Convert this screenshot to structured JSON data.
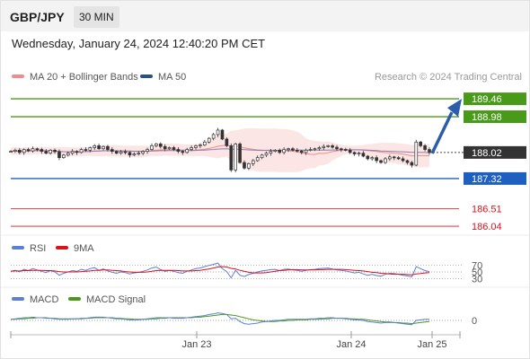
{
  "header": {
    "symbol": "GBP/JPY",
    "interval": "30 MIN"
  },
  "datetime": "Wednesday, January 24, 2024 12:40:20 PM CET",
  "legend": {
    "ma20_label": "MA 20 + Bollinger Bands",
    "ma20_color": "#f28b8b",
    "ma50_label": "MA 50",
    "ma50_color": "#2a4f8f",
    "copyright": "Research © 2024 Trading Central"
  },
  "rsi_legend": {
    "rsi_label": "RSI",
    "rsi_color": "#5b7fd6",
    "ma9_label": "9MA",
    "ma9_color": "#e0101a"
  },
  "macd_legend": {
    "macd_label": "MACD",
    "macd_color": "#5b7fd6",
    "signal_label": "MACD Signal",
    "signal_color": "#4a9a1a"
  },
  "chart_data": [
    {
      "type": "candlestick",
      "title": "GBP/JPY",
      "interval": "30 MIN",
      "x_labels": [
        "Jan 23",
        "Jan 24",
        "Jan 25"
      ],
      "last_price": 188.02,
      "ylim": [
        185.8,
        189.8
      ],
      "levels": [
        {
          "value": 189.46,
          "label": "189.46",
          "kind": "resistance",
          "color": "#4a9a1a"
        },
        {
          "value": 188.98,
          "label": "188.98",
          "kind": "resistance",
          "color": "#4a9a1a"
        },
        {
          "value": 187.32,
          "label": "187.32",
          "kind": "pivot",
          "color": "#1f5fbf"
        },
        {
          "value": 186.51,
          "label": "186.51",
          "kind": "support",
          "color": "#e0101a"
        },
        {
          "value": 186.04,
          "label": "186.04",
          "kind": "support",
          "color": "#e0101a"
        }
      ],
      "forecast_arrow": {
        "from": 188.02,
        "to": 189.46,
        "color": "#2a5daa"
      },
      "series": [
        {
          "name": "MA 20 + Bollinger Bands"
        },
        {
          "name": "MA 50"
        }
      ],
      "closes": [
        188.05,
        188.08,
        188.02,
        188.1,
        188.06,
        188.12,
        188.1,
        188.05,
        188.0,
        188.08,
        188.04,
        187.88,
        187.95,
        188.0,
        188.05,
        188.02,
        188.1,
        188.08,
        188.15,
        188.2,
        188.12,
        188.18,
        188.1,
        188.05,
        188.0,
        188.04,
        188.02,
        187.95,
        187.98,
        188.0,
        188.05,
        188.1,
        188.2,
        188.25,
        188.18,
        188.12,
        188.15,
        188.1,
        188.05,
        188.02,
        188.1,
        188.15,
        188.2,
        188.22,
        188.3,
        188.4,
        188.5,
        188.62,
        188.38,
        188.2,
        187.55,
        188.25,
        187.75,
        187.6,
        187.72,
        187.8,
        187.88,
        187.95,
        188.0,
        188.05,
        188.08,
        188.02,
        188.1,
        188.12,
        188.08,
        188.06,
        188.02,
        188.08,
        188.1,
        188.12,
        188.15,
        188.18,
        188.2,
        188.16,
        188.12,
        188.1,
        188.08,
        188.02,
        187.98,
        188.0,
        187.92,
        187.85,
        187.88,
        187.8,
        187.75,
        187.85,
        187.9,
        187.88,
        187.85,
        187.8,
        187.75,
        187.68,
        188.3,
        188.2,
        188.1,
        188.02
      ]
    },
    {
      "type": "line",
      "title": "RSI",
      "y_ticks": [
        70,
        50,
        30
      ],
      "ylim": [
        0,
        100
      ],
      "series": [
        {
          "name": "RSI",
          "values": [
            52,
            55,
            50,
            58,
            54,
            60,
            56,
            52,
            48,
            54,
            50,
            40,
            46,
            50,
            54,
            52,
            58,
            55,
            60,
            63,
            55,
            59,
            53,
            49,
            46,
            50,
            48,
            44,
            47,
            49,
            52,
            56,
            62,
            65,
            57,
            52,
            55,
            52,
            48,
            46,
            52,
            56,
            60,
            62,
            66,
            70,
            73,
            77,
            60,
            51,
            32,
            55,
            40,
            36,
            42,
            46,
            50,
            53,
            55,
            57,
            58,
            54,
            58,
            59,
            56,
            55,
            52,
            55,
            57,
            58,
            60,
            61,
            62,
            59,
            56,
            55,
            53,
            50,
            47,
            49,
            44,
            40,
            43,
            39,
            37,
            43,
            46,
            45,
            43,
            40,
            38,
            35,
            66,
            60,
            54,
            51
          ]
        },
        {
          "name": "9MA",
          "values": [
            52,
            53,
            53,
            54,
            54,
            55,
            55,
            55,
            54,
            54,
            53,
            51,
            50,
            50,
            50,
            50,
            51,
            52,
            53,
            55,
            55,
            56,
            56,
            55,
            54,
            53,
            51,
            50,
            49,
            49,
            49,
            50,
            52,
            54,
            55,
            55,
            55,
            55,
            54,
            53,
            53,
            53,
            54,
            55,
            57,
            59,
            62,
            65,
            66,
            65,
            61,
            59,
            55,
            52,
            49,
            47,
            47,
            47,
            48,
            50,
            52,
            54,
            55,
            56,
            57,
            57,
            56,
            56,
            56,
            56,
            57,
            57,
            58,
            58,
            58,
            58,
            57,
            56,
            55,
            54,
            53,
            51,
            49,
            48,
            46,
            45,
            44,
            43,
            43,
            43,
            42,
            41,
            44,
            45,
            47,
            48
          ]
        }
      ]
    },
    {
      "type": "line",
      "title": "MACD",
      "y_ticks": [
        0
      ],
      "series": [
        {
          "name": "MACD",
          "values": [
            0.02,
            0.03,
            0.04,
            0.05,
            0.05,
            0.06,
            0.05,
            0.05,
            0.04,
            0.04,
            0.03,
            0.02,
            0.02,
            0.02,
            0.03,
            0.03,
            0.04,
            0.04,
            0.05,
            0.06,
            0.06,
            0.06,
            0.05,
            0.04,
            0.03,
            0.03,
            0.02,
            0.01,
            0.01,
            0.01,
            0.02,
            0.03,
            0.04,
            0.05,
            0.05,
            0.05,
            0.05,
            0.04,
            0.04,
            0.04,
            0.05,
            0.06,
            0.07,
            0.08,
            0.09,
            0.11,
            0.12,
            0.14,
            0.13,
            0.11,
            0.03,
            0.04,
            -0.02,
            -0.06,
            -0.07,
            -0.06,
            -0.05,
            -0.03,
            -0.02,
            -0.01,
            0.0,
            0.0,
            0.01,
            0.02,
            0.02,
            0.02,
            0.02,
            0.02,
            0.03,
            0.03,
            0.04,
            0.04,
            0.05,
            0.05,
            0.04,
            0.04,
            0.03,
            0.02,
            0.01,
            0.01,
            0.0,
            -0.02,
            -0.03,
            -0.04,
            -0.05,
            -0.04,
            -0.04,
            -0.04,
            -0.05,
            -0.06,
            -0.07,
            -0.08,
            0.0,
            0.01,
            0.02,
            0.02
          ]
        },
        {
          "name": "MACD Signal",
          "values": [
            0.02,
            0.02,
            0.03,
            0.03,
            0.04,
            0.04,
            0.05,
            0.05,
            0.05,
            0.04,
            0.04,
            0.03,
            0.03,
            0.03,
            0.03,
            0.03,
            0.03,
            0.04,
            0.04,
            0.05,
            0.05,
            0.05,
            0.05,
            0.05,
            0.04,
            0.04,
            0.03,
            0.03,
            0.02,
            0.02,
            0.02,
            0.02,
            0.03,
            0.03,
            0.04,
            0.04,
            0.05,
            0.05,
            0.05,
            0.05,
            0.05,
            0.05,
            0.06,
            0.06,
            0.07,
            0.08,
            0.09,
            0.1,
            0.11,
            0.11,
            0.1,
            0.09,
            0.07,
            0.05,
            0.03,
            0.01,
            0.0,
            -0.01,
            -0.02,
            -0.02,
            -0.02,
            -0.01,
            -0.01,
            0.0,
            0.0,
            0.01,
            0.01,
            0.01,
            0.02,
            0.02,
            0.02,
            0.03,
            0.03,
            0.04,
            0.04,
            0.04,
            0.04,
            0.03,
            0.03,
            0.02,
            0.02,
            0.01,
            0.0,
            -0.01,
            -0.02,
            -0.03,
            -0.03,
            -0.04,
            -0.04,
            -0.05,
            -0.05,
            -0.06,
            -0.05,
            -0.04,
            -0.03,
            -0.02
          ]
        }
      ]
    }
  ]
}
